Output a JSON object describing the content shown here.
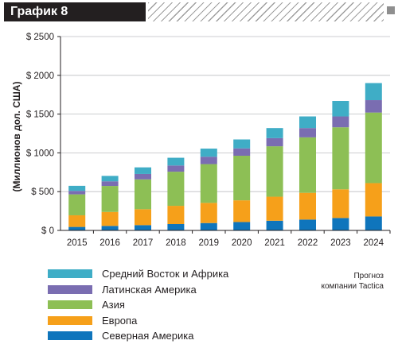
{
  "header": {
    "title": "График 8"
  },
  "note": "Прогноз\nкомпании Tactica",
  "chart_data": {
    "type": "bar",
    "stacked": true,
    "title": "",
    "xlabel": "",
    "ylabel": "(Миллионов дол. США)",
    "ylim": [
      0,
      2500
    ],
    "yticks": [
      {
        "value": 0,
        "label": "$ 0"
      },
      {
        "value": 500,
        "label": "$ 500"
      },
      {
        "value": 1000,
        "label": "$ 1000"
      },
      {
        "value": 1500,
        "label": "$ 1500"
      },
      {
        "value": 2000,
        "label": "$ 2000"
      },
      {
        "value": 2500,
        "label": "$ 2500"
      }
    ],
    "grid": true,
    "legend_position": "bottom",
    "categories": [
      "2015",
      "2016",
      "2017",
      "2018",
      "2019",
      "2020",
      "2021",
      "2022",
      "2023",
      "2024"
    ],
    "series": [
      {
        "name": "Северная Америка",
        "color": "#0f75bc",
        "values": [
          45,
          58,
          68,
          82,
          95,
          108,
          125,
          140,
          160,
          180
        ]
      },
      {
        "name": "Европа",
        "color": "#f6a01a",
        "values": [
          150,
          180,
          205,
          235,
          260,
          280,
          310,
          345,
          370,
          430
        ]
      },
      {
        "name": "Азия",
        "color": "#8dbf55",
        "values": [
          270,
          335,
          385,
          440,
          500,
          575,
          650,
          715,
          800,
          910
        ]
      },
      {
        "name": "Латинская Америка",
        "color": "#7a6db1",
        "values": [
          45,
          60,
          70,
          80,
          95,
          95,
          105,
          120,
          140,
          160
        ]
      },
      {
        "name": "Средний Восток и Африка",
        "color": "#3fadc6",
        "values": [
          65,
          70,
          85,
          100,
          105,
          115,
          130,
          150,
          200,
          220
        ]
      }
    ]
  }
}
